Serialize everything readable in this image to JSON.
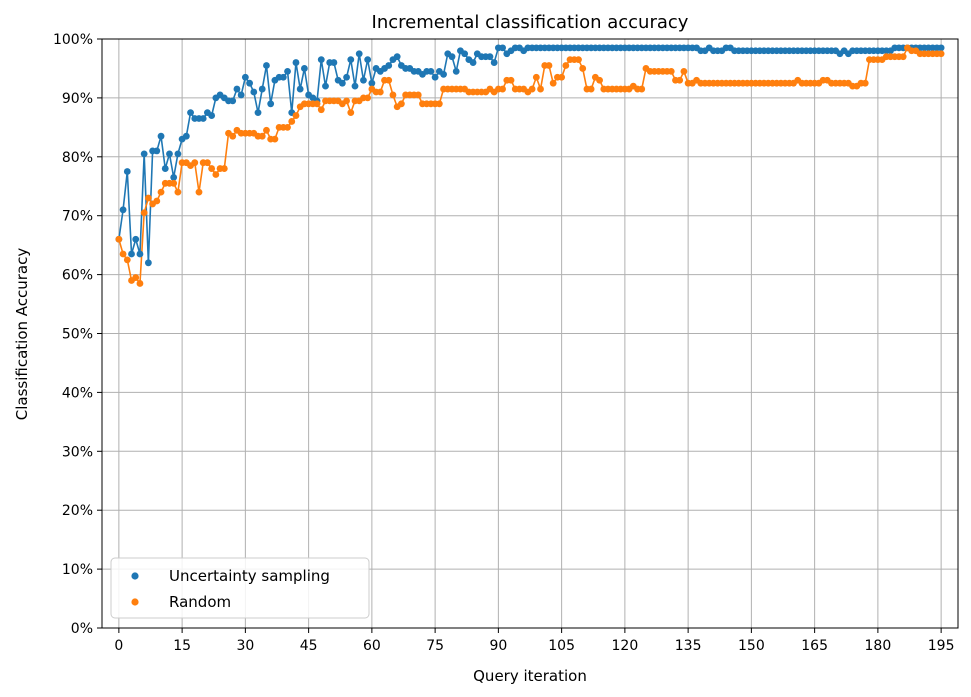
{
  "chart_data": {
    "type": "line",
    "title": "Incremental classification accuracy",
    "xlabel": "Query iteration",
    "ylabel": "Classification Accuracy",
    "xlim": [
      -4,
      199
    ],
    "ylim": [
      0,
      1
    ],
    "xticks": [
      0,
      15,
      30,
      45,
      60,
      75,
      90,
      105,
      120,
      135,
      150,
      165,
      180,
      195
    ],
    "yticks": [
      0,
      0.1,
      0.2,
      0.3,
      0.4,
      0.5,
      0.6,
      0.7,
      0.8,
      0.9,
      1.0
    ],
    "ytick_labels": [
      "0%",
      "10%",
      "20%",
      "30%",
      "40%",
      "50%",
      "60%",
      "70%",
      "80%",
      "90%",
      "100%"
    ],
    "grid": true,
    "legend_position": "lower-left",
    "series": [
      {
        "name": "Uncertainty sampling",
        "color": "#1f77b4",
        "values": [
          0.66,
          0.71,
          0.775,
          0.635,
          0.66,
          0.635,
          0.805,
          0.62,
          0.81,
          0.81,
          0.835,
          0.78,
          0.805,
          0.765,
          0.805,
          0.83,
          0.835,
          0.875,
          0.865,
          0.865,
          0.865,
          0.875,
          0.87,
          0.9,
          0.905,
          0.9,
          0.895,
          0.895,
          0.915,
          0.905,
          0.935,
          0.925,
          0.91,
          0.875,
          0.915,
          0.955,
          0.89,
          0.93,
          0.935,
          0.935,
          0.945,
          0.875,
          0.96,
          0.915,
          0.95,
          0.905,
          0.9,
          0.895,
          0.965,
          0.92,
          0.96,
          0.96,
          0.93,
          0.925,
          0.935,
          0.965,
          0.92,
          0.975,
          0.93,
          0.965,
          0.925,
          0.95,
          0.945,
          0.95,
          0.955,
          0.965,
          0.97,
          0.955,
          0.95,
          0.95,
          0.945,
          0.945,
          0.94,
          0.945,
          0.945,
          0.935,
          0.945,
          0.94,
          0.975,
          0.97,
          0.945,
          0.98,
          0.975,
          0.965,
          0.96,
          0.975,
          0.97,
          0.97,
          0.97,
          0.96,
          0.985,
          0.985,
          0.975,
          0.98,
          0.985,
          0.985,
          0.98,
          0.985,
          0.985,
          0.985,
          0.985,
          0.985,
          0.985,
          0.985,
          0.985,
          0.985,
          0.985,
          0.985,
          0.985,
          0.985,
          0.985,
          0.985,
          0.985,
          0.985,
          0.985,
          0.985,
          0.985,
          0.985,
          0.985,
          0.985,
          0.985,
          0.985,
          0.985,
          0.985,
          0.985,
          0.985,
          0.985,
          0.985,
          0.985,
          0.985,
          0.985,
          0.985,
          0.985,
          0.985,
          0.985,
          0.985,
          0.985,
          0.985,
          0.98,
          0.98,
          0.985,
          0.98,
          0.98,
          0.98,
          0.985,
          0.985,
          0.98,
          0.98,
          0.98,
          0.98,
          0.98,
          0.98,
          0.98,
          0.98,
          0.98,
          0.98,
          0.98,
          0.98,
          0.98,
          0.98,
          0.98,
          0.98,
          0.98,
          0.98,
          0.98,
          0.98,
          0.98,
          0.98,
          0.98,
          0.98,
          0.98,
          0.975,
          0.98,
          0.975,
          0.98,
          0.98,
          0.98,
          0.98,
          0.98,
          0.98,
          0.98,
          0.98,
          0.98,
          0.98,
          0.985,
          0.985,
          0.985,
          0.985,
          0.985,
          0.985,
          0.985,
          0.985,
          0.985,
          0.985,
          0.985,
          0.985
        ]
      },
      {
        "name": "Random",
        "color": "#ff7f0e",
        "values": [
          0.66,
          0.635,
          0.625,
          0.59,
          0.595,
          0.585,
          0.705,
          0.73,
          0.72,
          0.725,
          0.74,
          0.755,
          0.755,
          0.755,
          0.74,
          0.79,
          0.79,
          0.785,
          0.79,
          0.74,
          0.79,
          0.79,
          0.78,
          0.77,
          0.78,
          0.78,
          0.84,
          0.835,
          0.845,
          0.84,
          0.84,
          0.84,
          0.84,
          0.835,
          0.835,
          0.845,
          0.83,
          0.83,
          0.85,
          0.85,
          0.85,
          0.86,
          0.87,
          0.885,
          0.89,
          0.89,
          0.89,
          0.89,
          0.88,
          0.895,
          0.895,
          0.895,
          0.895,
          0.89,
          0.895,
          0.875,
          0.895,
          0.895,
          0.9,
          0.9,
          0.915,
          0.91,
          0.91,
          0.93,
          0.93,
          0.905,
          0.885,
          0.89,
          0.905,
          0.905,
          0.905,
          0.905,
          0.89,
          0.89,
          0.89,
          0.89,
          0.89,
          0.915,
          0.915,
          0.915,
          0.915,
          0.915,
          0.915,
          0.91,
          0.91,
          0.91,
          0.91,
          0.91,
          0.915,
          0.91,
          0.915,
          0.915,
          0.93,
          0.93,
          0.915,
          0.915,
          0.915,
          0.91,
          0.915,
          0.935,
          0.915,
          0.955,
          0.955,
          0.925,
          0.935,
          0.935,
          0.955,
          0.965,
          0.965,
          0.965,
          0.95,
          0.915,
          0.915,
          0.935,
          0.93,
          0.915,
          0.915,
          0.915,
          0.915,
          0.915,
          0.915,
          0.915,
          0.92,
          0.915,
          0.915,
          0.95,
          0.945,
          0.945,
          0.945,
          0.945,
          0.945,
          0.945,
          0.93,
          0.93,
          0.945,
          0.925,
          0.925,
          0.93,
          0.925,
          0.925,
          0.925,
          0.925,
          0.925,
          0.925,
          0.925,
          0.925,
          0.925,
          0.925,
          0.925,
          0.925,
          0.925,
          0.925,
          0.925,
          0.925,
          0.925,
          0.925,
          0.925,
          0.925,
          0.925,
          0.925,
          0.925,
          0.93,
          0.925,
          0.925,
          0.925,
          0.925,
          0.925,
          0.93,
          0.93,
          0.925,
          0.925,
          0.925,
          0.925,
          0.925,
          0.92,
          0.92,
          0.925,
          0.925,
          0.965,
          0.965,
          0.965,
          0.965,
          0.97,
          0.97,
          0.97,
          0.97,
          0.97,
          0.985,
          0.98,
          0.98,
          0.975,
          0.975,
          0.975,
          0.975,
          0.975,
          0.975
        ]
      }
    ]
  }
}
